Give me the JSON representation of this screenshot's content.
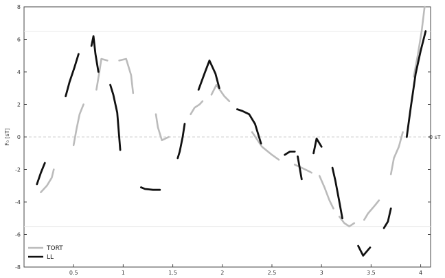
{
  "chart_data": {
    "type": "line",
    "title": "",
    "xlabel": "",
    "ylabel": "F₀ [sT]",
    "xlim": [
      0.0,
      4.1
    ],
    "ylim": [
      -8,
      8
    ],
    "xticks": [
      0.5,
      1,
      1.5,
      2,
      2.5,
      3,
      3.5,
      4
    ],
    "xtick_labels": [
      "0.5",
      "1",
      "1.5",
      "2",
      "2.5",
      "3",
      "3.5",
      "4"
    ],
    "yticks": [
      -8,
      -6,
      -4,
      -2,
      0,
      2,
      4,
      6,
      8
    ],
    "ytick_labels": [
      "-8",
      "-6",
      "-4",
      "-2",
      "0",
      "2",
      "4",
      "6",
      "8"
    ],
    "grid": false,
    "reference_lines": [
      {
        "y": 0,
        "label": "0 sT"
      },
      {
        "y": 6.5,
        "label": ""
      },
      {
        "y": -5.5,
        "label": ""
      }
    ],
    "legend": {
      "placement": "bottom-left"
    },
    "series": [
      {
        "name": "TORT",
        "color": "#bbbbbb",
        "segments": [
          [
            [
              0.17,
              -3.4
            ],
            [
              0.23,
              -3.0
            ],
            [
              0.28,
              -2.5
            ],
            [
              0.3,
              -2.0
            ]
          ],
          [
            [
              0.5,
              -0.5
            ],
            [
              0.53,
              0.5
            ],
            [
              0.56,
              1.4
            ],
            [
              0.6,
              2.0
            ]
          ],
          [
            [
              0.73,
              2.9
            ],
            [
              0.76,
              4.0
            ],
            [
              0.78,
              4.8
            ],
            [
              0.84,
              4.7
            ]
          ],
          [
            [
              0.96,
              4.7
            ],
            [
              1.03,
              4.8
            ],
            [
              1.08,
              3.8
            ],
            [
              1.1,
              2.7
            ]
          ],
          [
            [
              1.33,
              1.4
            ],
            [
              1.35,
              0.6
            ],
            [
              1.39,
              -0.2
            ],
            [
              1.46,
              0.0
            ]
          ],
          [
            [
              1.68,
              1.4
            ],
            [
              1.72,
              1.8
            ],
            [
              1.77,
              2.0
            ],
            [
              1.8,
              2.2
            ]
          ],
          [
            [
              1.89,
              2.6
            ],
            [
              1.94,
              3.2
            ],
            [
              2.02,
              2.5
            ],
            [
              2.07,
              2.2
            ]
          ],
          [
            [
              2.3,
              0.3
            ],
            [
              2.4,
              -0.6
            ],
            [
              2.5,
              -1.1
            ],
            [
              2.57,
              -1.4
            ]
          ],
          [
            [
              2.73,
              -1.7
            ],
            [
              2.8,
              -1.9
            ],
            [
              2.87,
              -2.1
            ],
            [
              2.9,
              -2.2
            ]
          ],
          [
            [
              2.98,
              -2.4
            ],
            [
              3.03,
              -3.1
            ],
            [
              3.08,
              -3.9
            ],
            [
              3.12,
              -4.4
            ]
          ],
          [
            [
              3.18,
              -4.9
            ],
            [
              3.23,
              -5.3
            ],
            [
              3.28,
              -5.5
            ],
            [
              3.33,
              -5.3
            ]
          ],
          [
            [
              3.43,
              -5.1
            ],
            [
              3.47,
              -4.7
            ],
            [
              3.54,
              -4.2
            ],
            [
              3.58,
              -3.9
            ]
          ],
          [
            [
              3.7,
              -2.3
            ],
            [
              3.73,
              -1.3
            ],
            [
              3.78,
              -0.6
            ],
            [
              3.82,
              0.3
            ]
          ],
          [
            [
              3.93,
              3.7
            ],
            [
              3.97,
              5.0
            ],
            [
              4.01,
              6.5
            ],
            [
              4.04,
              8.0
            ]
          ]
        ]
      },
      {
        "name": "LL",
        "color": "#111111",
        "segments": [
          [
            [
              0.13,
              -2.9
            ],
            [
              0.17,
              -2.2
            ],
            [
              0.21,
              -1.6
            ]
          ],
          [
            [
              0.42,
              2.5
            ],
            [
              0.46,
              3.4
            ],
            [
              0.51,
              4.3
            ],
            [
              0.55,
              5.1
            ]
          ],
          [
            [
              0.68,
              5.6
            ],
            [
              0.7,
              6.2
            ],
            [
              0.72,
              5.1
            ],
            [
              0.75,
              4.0
            ]
          ],
          [
            [
              0.87,
              3.2
            ],
            [
              0.9,
              2.6
            ],
            [
              0.94,
              1.5
            ],
            [
              0.97,
              -0.8
            ]
          ],
          [
            [
              1.18,
              -3.1
            ],
            [
              1.22,
              -3.2
            ],
            [
              1.3,
              -3.25
            ],
            [
              1.37,
              -3.25
            ]
          ],
          [
            [
              1.55,
              -1.3
            ],
            [
              1.57,
              -0.9
            ],
            [
              1.6,
              0.0
            ],
            [
              1.62,
              0.8
            ]
          ],
          [
            [
              1.76,
              2.9
            ],
            [
              1.82,
              3.9
            ],
            [
              1.87,
              4.7
            ],
            [
              1.93,
              3.9
            ],
            [
              1.97,
              3.0
            ]
          ],
          [
            [
              2.15,
              1.7
            ],
            [
              2.2,
              1.6
            ],
            [
              2.27,
              1.4
            ],
            [
              2.33,
              0.8
            ],
            [
              2.39,
              -0.4
            ]
          ],
          [
            [
              2.63,
              -1.1
            ],
            [
              2.68,
              -0.9
            ],
            [
              2.73,
              -0.9
            ]
          ],
          [
            [
              2.76,
              -1.2
            ],
            [
              2.78,
              -1.9
            ],
            [
              2.8,
              -2.6
            ]
          ],
          [
            [
              2.92,
              -1.0
            ],
            [
              2.95,
              -0.1
            ],
            [
              3.0,
              -0.6
            ]
          ],
          [
            [
              3.11,
              -1.9
            ],
            [
              3.14,
              -2.7
            ],
            [
              3.18,
              -4.0
            ],
            [
              3.21,
              -5.0
            ]
          ],
          [
            [
              3.37,
              -6.7
            ],
            [
              3.42,
              -7.3
            ],
            [
              3.49,
              -6.8
            ]
          ],
          [
            [
              3.63,
              -5.6
            ],
            [
              3.67,
              -5.2
            ],
            [
              3.7,
              -4.4
            ]
          ],
          [
            [
              3.86,
              0.0
            ],
            [
              3.9,
              1.8
            ],
            [
              3.95,
              3.9
            ],
            [
              4.0,
              5.3
            ],
            [
              4.05,
              6.5
            ]
          ]
        ]
      }
    ]
  }
}
